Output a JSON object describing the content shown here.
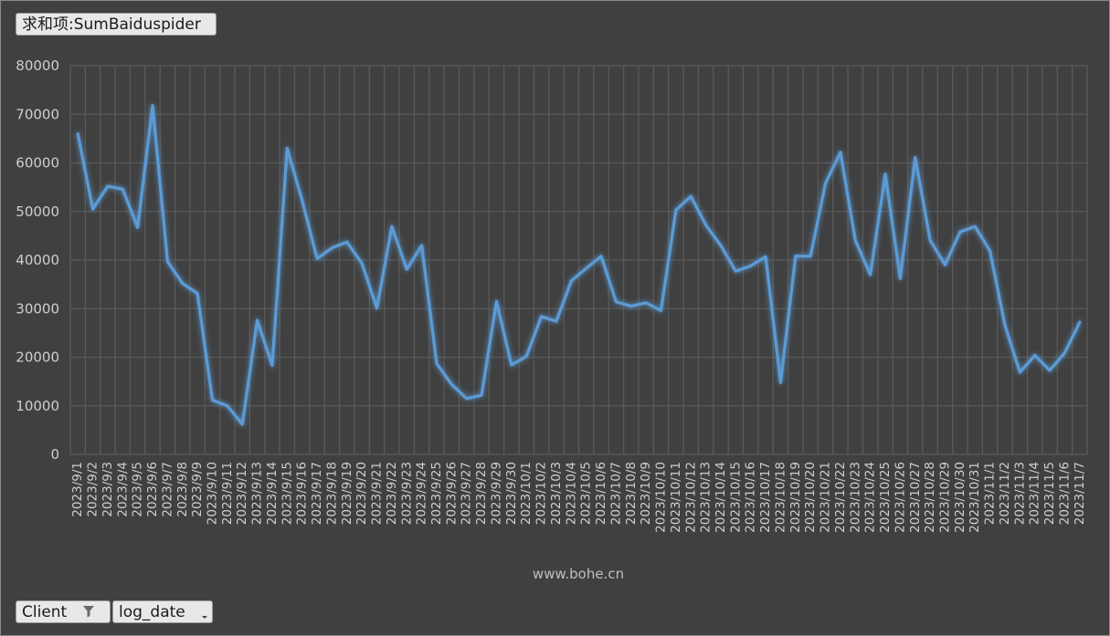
{
  "buttons": {
    "value_field": "求和项:SumBaiduspider",
    "client_field": "Client",
    "date_field": "log_date"
  },
  "icons": {
    "filter": "filter-icon",
    "dropdown": "dropdown-arrow-icon"
  },
  "watermark": "www.bohe.cn",
  "colors": {
    "background": "#404040",
    "grid": "#5a5a5a",
    "line": "#5b9bd5",
    "text": "#cfcfcf"
  },
  "chart_data": {
    "type": "line",
    "title": "",
    "xlabel": "",
    "ylabel": "",
    "ylim": [
      0,
      80000
    ],
    "yticks": [
      0,
      10000,
      20000,
      30000,
      40000,
      50000,
      60000,
      70000,
      80000
    ],
    "grid": true,
    "categories": [
      "2023/9/1",
      "2023/9/2",
      "2023/9/3",
      "2023/9/4",
      "2023/9/5",
      "2023/9/6",
      "2023/9/7",
      "2023/9/8",
      "2023/9/9",
      "2023/9/10",
      "2023/9/11",
      "2023/9/12",
      "2023/9/13",
      "2023/9/14",
      "2023/9/15",
      "2023/9/16",
      "2023/9/17",
      "2023/9/18",
      "2023/9/19",
      "2023/9/20",
      "2023/9/21",
      "2023/9/22",
      "2023/9/23",
      "2023/9/24",
      "2023/9/25",
      "2023/9/26",
      "2023/9/27",
      "2023/9/28",
      "2023/9/29",
      "2023/9/30",
      "2023/10/1",
      "2023/10/2",
      "2023/10/3",
      "2023/10/4",
      "2023/10/5",
      "2023/10/6",
      "2023/10/7",
      "2023/10/8",
      "2023/10/9",
      "2023/10/10",
      "2023/10/11",
      "2023/10/12",
      "2023/10/13",
      "2023/10/14",
      "2023/10/15",
      "2023/10/16",
      "2023/10/17",
      "2023/10/18",
      "2023/10/19",
      "2023/10/20",
      "2023/10/21",
      "2023/10/22",
      "2023/10/23",
      "2023/10/24",
      "2023/10/25",
      "2023/10/26",
      "2023/10/27",
      "2023/10/28",
      "2023/10/29",
      "2023/10/30",
      "2023/10/31",
      "2023/11/1",
      "2023/11/2",
      "2023/11/3",
      "2023/11/4",
      "2023/11/5",
      "2023/11/6",
      "2023/11/7"
    ],
    "series": [
      {
        "values": [
          66000,
          50500,
          55200,
          54600,
          46700,
          71800,
          39700,
          35200,
          33100,
          11200,
          10000,
          6200,
          27600,
          18300,
          63000,
          52300,
          40300,
          42500,
          43700,
          39300,
          30100,
          46900,
          38100,
          43000,
          18700,
          14400,
          11500,
          12200,
          31500,
          18400,
          20200,
          28400,
          27400,
          35700,
          38300,
          40800,
          31400,
          30500,
          31200,
          29600,
          50300,
          53100,
          47200,
          43000,
          37700,
          38800,
          40700,
          14800,
          40800,
          40800,
          55800,
          62200,
          44000,
          37000,
          57700,
          36200,
          61100,
          44100,
          39000,
          45800,
          46900,
          41900,
          26600,
          16900,
          20400,
          17300,
          20900,
          27200
        ]
      }
    ]
  }
}
